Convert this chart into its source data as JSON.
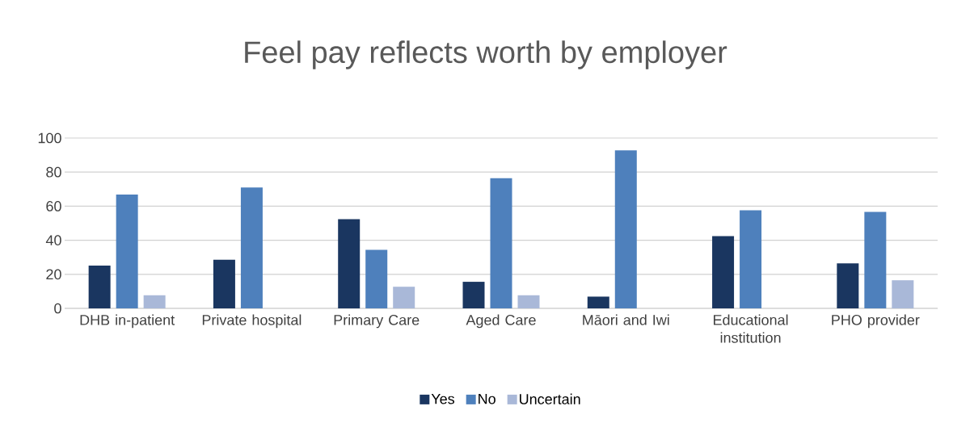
{
  "chart_data": {
    "type": "bar",
    "title": "Feel pay reflects worth by employer",
    "categories": [
      "DHB in-patient",
      "Private hospital",
      "Primary Care",
      "Aged Care",
      "Māori and Iwi",
      "Educational institution",
      "PHO provider"
    ],
    "series": [
      {
        "name": "Yes",
        "color": "#1a3660",
        "values": [
          25.1,
          28.6,
          52.4,
          15.6,
          6.9,
          42.4,
          26.4
        ]
      },
      {
        "name": "No",
        "color": "#4e80bc",
        "values": [
          66.8,
          71,
          34.4,
          76.4,
          92.8,
          57.6,
          56.6
        ]
      },
      {
        "name": "Uncertain",
        "color": "#a9b8d8",
        "values": [
          7.7,
          null,
          12.7,
          7.7,
          null,
          null,
          16.5
        ]
      }
    ],
    "ylim": [
      0,
      100
    ],
    "yticks": [
      0,
      20,
      40,
      60,
      80,
      100
    ],
    "grid": "y",
    "legend": "bottom"
  }
}
